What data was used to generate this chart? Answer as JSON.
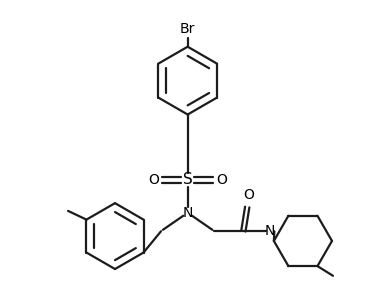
{
  "background_color": "#ffffff",
  "line_color": "#1c1c1c",
  "text_color": "#000000",
  "bond_lw": 1.6,
  "figsize": [
    3.85,
    2.92
  ],
  "dpi": 100,
  "labels": {
    "Br": "Br",
    "S": "S",
    "O": "O",
    "N": "N"
  },
  "font_size": 9
}
